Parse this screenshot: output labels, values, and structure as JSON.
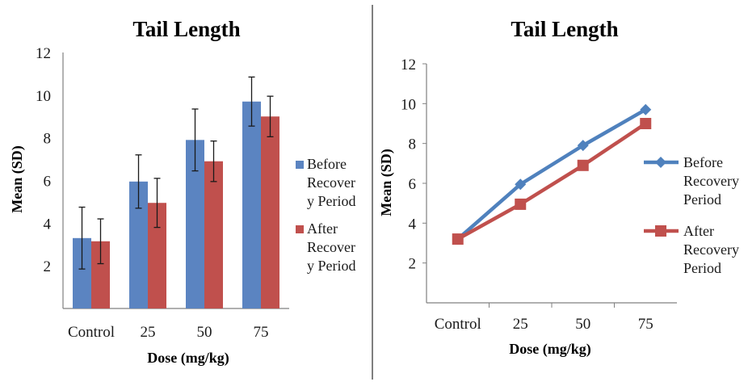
{
  "chart_data": [
    {
      "type": "bar",
      "title": "Tail Length",
      "xlabel": "Dose (mg/kg)",
      "ylabel": "Mean (SD)",
      "categories": [
        "Control",
        "25",
        "50",
        "75"
      ],
      "ylim": [
        0,
        12
      ],
      "yticks": [
        "2",
        "4",
        "6",
        "8",
        "10",
        "12"
      ],
      "error_bars": true,
      "legend_position": "right",
      "series": [
        {
          "name": "Before Recovery Period",
          "legend_lines": [
            "Before",
            "Recover",
            "y Period"
          ],
          "color": "#5b84c1",
          "values": [
            3.3,
            5.95,
            7.9,
            9.7
          ],
          "errors": [
            1.45,
            1.25,
            1.45,
            1.15
          ]
        },
        {
          "name": "After Recovery Period",
          "legend_lines": [
            "After",
            "Recover",
            "y Period"
          ],
          "color": "#c0504d",
          "values": [
            3.15,
            4.95,
            6.9,
            9.0
          ],
          "errors": [
            1.05,
            1.15,
            0.95,
            0.95
          ]
        }
      ]
    },
    {
      "type": "line",
      "title": "Tail Length",
      "xlabel": "Dose (mg/kg)",
      "ylabel": "Mean (SD)",
      "categories": [
        "Control",
        "25",
        "50",
        "75"
      ],
      "ylim": [
        0,
        12
      ],
      "yticks": [
        "2",
        "4",
        "6",
        "8",
        "10",
        "12"
      ],
      "legend_position": "right",
      "series": [
        {
          "name": "Before Recovery Period",
          "legend_lines": [
            "Before",
            "Recovery",
            "Period"
          ],
          "color": "#4f81bd",
          "marker": "diamond",
          "values": [
            3.2,
            5.95,
            7.9,
            9.7
          ]
        },
        {
          "name": "After Recovery Period",
          "legend_lines": [
            "After",
            "Recovery",
            "Period"
          ],
          "color": "#c0504d",
          "marker": "square",
          "values": [
            3.2,
            4.95,
            6.9,
            9.0
          ]
        }
      ]
    }
  ]
}
